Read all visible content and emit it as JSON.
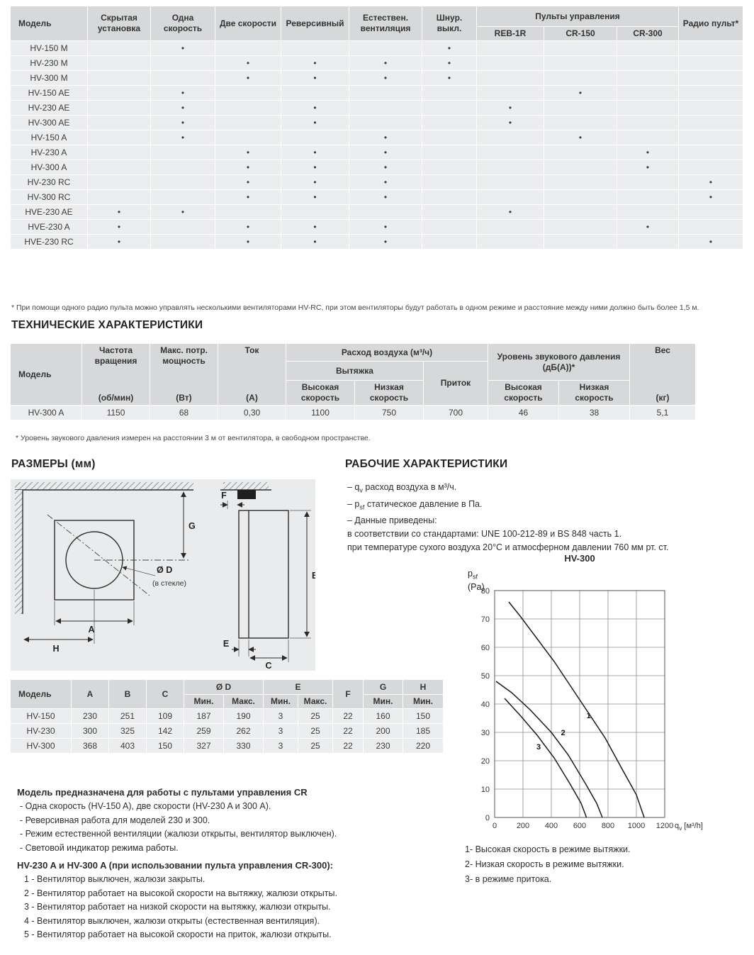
{
  "models_table": {
    "model_header": "Модель",
    "columns": [
      "Скрытая установка",
      "Одна скорость",
      "Две скорости",
      "Реверсивный",
      "Естествен. вентиляция",
      "Шнур. выкл."
    ],
    "remotes_group": "Пульты управления",
    "remote_columns": [
      "REB-1R",
      "CR-150",
      "CR-300"
    ],
    "radio_header": "Радио пульт*",
    "rows": [
      {
        "model": "HV-150 M",
        "dots": [
          0,
          1,
          0,
          0,
          0,
          1,
          0,
          0,
          0,
          0
        ]
      },
      {
        "model": "HV-230 M",
        "dots": [
          0,
          0,
          1,
          1,
          1,
          1,
          0,
          0,
          0,
          0
        ]
      },
      {
        "model": "HV-300 M",
        "dots": [
          0,
          0,
          1,
          1,
          1,
          1,
          0,
          0,
          0,
          0
        ]
      },
      {
        "model": "HV-150 AE",
        "dots": [
          0,
          1,
          0,
          0,
          0,
          0,
          0,
          1,
          0,
          0
        ]
      },
      {
        "model": "HV-230 AE",
        "dots": [
          0,
          1,
          0,
          1,
          0,
          0,
          1,
          0,
          0,
          0
        ]
      },
      {
        "model": "HV-300 AE",
        "dots": [
          0,
          1,
          0,
          1,
          0,
          0,
          1,
          0,
          0,
          0
        ]
      },
      {
        "model": "HV-150 A",
        "dots": [
          0,
          1,
          0,
          0,
          1,
          0,
          0,
          1,
          0,
          0
        ]
      },
      {
        "model": "HV-230 A",
        "dots": [
          0,
          0,
          1,
          1,
          1,
          0,
          0,
          0,
          1,
          0
        ]
      },
      {
        "model": "HV-300 A",
        "dots": [
          0,
          0,
          1,
          1,
          1,
          0,
          0,
          0,
          1,
          0
        ]
      },
      {
        "model": "HV-230 RC",
        "dots": [
          0,
          0,
          1,
          1,
          1,
          0,
          0,
          0,
          0,
          1
        ]
      },
      {
        "model": "HV-300 RC",
        "dots": [
          0,
          0,
          1,
          1,
          1,
          0,
          0,
          0,
          0,
          1
        ]
      },
      {
        "model": "HVE-230 AE",
        "dots": [
          1,
          1,
          0,
          0,
          0,
          0,
          1,
          0,
          0,
          0
        ]
      },
      {
        "model": "HVE-230 A",
        "dots": [
          1,
          0,
          1,
          1,
          1,
          0,
          0,
          0,
          1,
          0
        ]
      },
      {
        "model": "HVE-230 RC",
        "dots": [
          1,
          0,
          1,
          1,
          1,
          0,
          0,
          0,
          0,
          1
        ]
      }
    ],
    "footnote": "* При помощи одного радио пульта можно управлять несколькими вентиляторами HV-RC, при этом вентиляторы будут работать в одном режиме и расстояние между ними должно быть более 1,5 м."
  },
  "tech": {
    "title": "ТЕХНИЧЕСКИЕ ХАРАКТЕРИСТИКИ",
    "headers": {
      "model": "Модель",
      "speed": "Частота вращения",
      "speed_unit": "(об/мин)",
      "power": "Макс. потр. мощность",
      "power_unit": "(Вт)",
      "current": "Ток",
      "current_unit": "(А)",
      "airflow_group": "Расход воздуха (м³/ч)",
      "exhaust": "Вытяжка",
      "supply": "Приток",
      "high_speed": "Высокая скорость",
      "low_speed": "Низкая скорость",
      "noise_group": "Уровень звукового давления (дБ(А))*",
      "noise_high": "Высокая скорость",
      "noise_low": "Низкая скорость",
      "weight": "Вес",
      "weight_unit": "(кг)"
    },
    "rows": [
      {
        "model": "HV-300 A",
        "values": [
          "1150",
          "68",
          "0,30",
          "1100",
          "750",
          "700",
          "46",
          "38",
          "5,1"
        ]
      }
    ],
    "footnote": "* Уровень звукового давления измерен на расстоянии 3 м от вентилятора, в свободном пространстве."
  },
  "dimensions": {
    "title": "РАЗМЕРЫ (мм)",
    "diagram_labels": {
      "g": "G",
      "dd": "Ø D",
      "dd_note": "(в стекле)",
      "a": "A",
      "h": "H",
      "f": "F",
      "b": "B",
      "e": "E",
      "c": "C"
    },
    "table": {
      "model_header": "Модель",
      "col_a": "A",
      "col_b": "B",
      "col_c": "C",
      "d_group": "Ø D",
      "e_group": "E",
      "min_label": "Мин.",
      "max_label": "Макс.",
      "col_f": "F",
      "col_g": "G",
      "col_h": "H",
      "rows": [
        {
          "model": "HV-150",
          "values": [
            "230",
            "251",
            "109",
            "187",
            "190",
            "3",
            "25",
            "22",
            "160",
            "150"
          ]
        },
        {
          "model": "HV-230",
          "values": [
            "300",
            "325",
            "142",
            "259",
            "262",
            "3",
            "25",
            "22",
            "200",
            "185"
          ]
        },
        {
          "model": "HV-300",
          "values": [
            "368",
            "403",
            "150",
            "327",
            "330",
            "3",
            "25",
            "22",
            "230",
            "220"
          ]
        }
      ]
    }
  },
  "performance": {
    "title": "РАБОЧИЕ ХАРАКТЕРИСТИКИ",
    "line1_pre": "– q",
    "line1_sub": "v",
    "line1_post": " расход воздуха в м³/ч.",
    "line2_pre": "– p",
    "line2_sub": "sf",
    "line2_post": " статическое давление в Па.",
    "line3": "– Данные приведены:",
    "line4": "в соответствии со стандартами: UNE 100-212-89 и BS 848 часть 1.",
    "line5": "при температуре сухого воздуха 20°C и атмосферном давлении 760 мм рт. ст.",
    "legend": [
      "1- Высокая скорость в режиме вытяжки.",
      "2- Низкая скорость в режиме вытяжки.",
      "3- в режиме притока."
    ]
  },
  "chart_data": {
    "type": "line",
    "title": "HV-300",
    "xlabel": "qv [м³/h]",
    "ylabel": "psf (Pa)",
    "xlabel_parts": {
      "pre": "q",
      "sub": "v",
      "post": " [м³/h]"
    },
    "ylabel_parts": {
      "pre": "p",
      "sub": "sf",
      "unit": "(Pa)"
    },
    "xlim": [
      0,
      1200
    ],
    "ylim": [
      0,
      80
    ],
    "x_ticks": [
      0,
      200,
      400,
      600,
      800,
      1000,
      1200
    ],
    "y_ticks": [
      0,
      10,
      20,
      30,
      40,
      50,
      60,
      70,
      80
    ],
    "grid": true,
    "legend_position": "below",
    "series": [
      {
        "name": "1",
        "label": "Высокая скорость в режиме вытяжки",
        "label_xy": [
          648,
          35
        ],
        "points": [
          [
            100,
            76
          ],
          [
            180,
            71
          ],
          [
            300,
            63
          ],
          [
            420,
            55
          ],
          [
            540,
            46
          ],
          [
            660,
            37
          ],
          [
            780,
            28
          ],
          [
            900,
            17
          ],
          [
            1000,
            8
          ],
          [
            1055,
            0
          ]
        ]
      },
      {
        "name": "2",
        "label": "Низкая скорость в режиме вытяжки",
        "label_xy": [
          468,
          29
        ],
        "points": [
          [
            10,
            48
          ],
          [
            120,
            44
          ],
          [
            250,
            38
          ],
          [
            400,
            30
          ],
          [
            520,
            22
          ],
          [
            640,
            12
          ],
          [
            720,
            5
          ],
          [
            760,
            0
          ]
        ]
      },
      {
        "name": "3",
        "label": "в режиме притока",
        "label_xy": [
          295,
          24
        ],
        "points": [
          [
            70,
            42
          ],
          [
            180,
            36
          ],
          [
            300,
            29
          ],
          [
            420,
            21
          ],
          [
            530,
            12
          ],
          [
            610,
            5
          ],
          [
            648,
            0
          ]
        ]
      }
    ]
  },
  "notes": {
    "cr_title": "Модель предназначена для работы с пультами управления CR",
    "cr_items": [
      "- Одна скорость (HV-150 A), две скорости (HV-230 A и 300 A).",
      "- Реверсивная работа для моделей 230 и 300.",
      "- Режим естественной вентиляции (жалюзи открыты, вентилятор выключен).",
      "- Световой индикатор режима работы."
    ],
    "cr300_title": "HV-230 A и HV-300 A (при использовании пульта управления CR-300):",
    "cr300_items": [
      "1 - Вентилятор выключен, жалюзи закрыты.",
      "2 - Вентилятор работает на высокой скорости на вытяжку, жалюзи открыты.",
      "3 - Вентилятор работает на низкой скорости на вытяжку, жалюзи открыты.",
      "4 - Вентилятор выключен, жалюзи открыты (естественная вентиляция).",
      "5 - Вентилятор работает на высокой скорости на приток, жалюзи открыты."
    ]
  }
}
